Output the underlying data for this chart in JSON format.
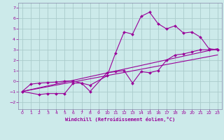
{
  "xlabel": "Windchill (Refroidissement éolien,°C)",
  "bg_color": "#cceaea",
  "grid_color": "#aacccc",
  "line_color": "#990099",
  "spine_color": "#8888aa",
  "xlim": [
    -0.5,
    23.5
  ],
  "ylim": [
    -2.7,
    7.5
  ],
  "xticks": [
    0,
    1,
    2,
    3,
    4,
    5,
    6,
    7,
    8,
    9,
    10,
    11,
    12,
    13,
    14,
    15,
    16,
    17,
    18,
    19,
    20,
    21,
    22,
    23
  ],
  "yticks": [
    -2,
    -1,
    0,
    1,
    2,
    3,
    4,
    5,
    6,
    7
  ],
  "series1_x": [
    0,
    1,
    2,
    3,
    4,
    5,
    6,
    7,
    8,
    10,
    11,
    12,
    13,
    14,
    15,
    16,
    17,
    18,
    19,
    20,
    21,
    22,
    23
  ],
  "series1_y": [
    -1.0,
    -0.3,
    -0.2,
    -0.15,
    -0.1,
    0.0,
    0.0,
    -0.2,
    -0.4,
    0.5,
    2.7,
    4.7,
    4.5,
    6.2,
    6.6,
    5.5,
    5.0,
    5.3,
    4.6,
    4.7,
    4.2,
    3.1,
    3.0
  ],
  "series2_x": [
    0,
    2,
    3,
    4,
    5,
    6,
    7,
    8,
    10,
    11,
    12,
    13,
    14,
    15,
    16,
    17,
    18,
    19,
    20,
    21,
    22,
    23
  ],
  "series2_y": [
    -1.0,
    -1.3,
    -1.2,
    -1.2,
    -1.2,
    -0.2,
    -0.2,
    -1.0,
    0.8,
    0.9,
    1.0,
    -0.2,
    0.9,
    0.8,
    1.0,
    2.0,
    2.5,
    2.6,
    2.8,
    3.0,
    3.0,
    3.0
  ],
  "line1_x": [
    0,
    23
  ],
  "line1_y": [
    -1.0,
    3.1
  ],
  "line2_x": [
    0,
    23
  ],
  "line2_y": [
    -1.0,
    2.5
  ]
}
